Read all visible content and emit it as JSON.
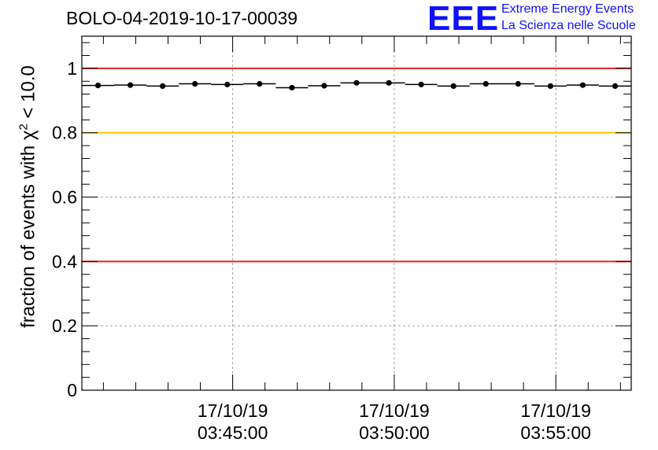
{
  "title": "BOLO-04-2019-10-17-00039",
  "logo": {
    "mark": "EEE",
    "line1": "Extreme Energy Events",
    "line2": "La Scienza nelle Scuole",
    "color": "#1010ff"
  },
  "chart_data": {
    "type": "scatter",
    "ylabel": {
      "prefix": "fraction of events with ",
      "symbol": "χ",
      "exponent": "2",
      "suffix": " < 10.0"
    },
    "ylim": [
      0,
      1.1
    ],
    "yticks": [
      {
        "value": 0,
        "label": "0"
      },
      {
        "value": 0.2,
        "label": "0.2"
      },
      {
        "value": 0.4,
        "label": "0.4"
      },
      {
        "value": 0.6,
        "label": "0.6"
      },
      {
        "value": 0.8,
        "label": "0.8"
      },
      {
        "value": 1,
        "label": "1"
      }
    ],
    "xlim": [
      "03:40:20",
      "03:57:20"
    ],
    "xticks": [
      {
        "time": "03:45:00",
        "date": "17/10/19"
      },
      {
        "time": "03:50:00",
        "date": "17/10/19"
      },
      {
        "time": "03:55:00",
        "date": "17/10/19"
      }
    ],
    "grid": true,
    "reference_lines": [
      {
        "value": 1.0,
        "color": "#e8221e"
      },
      {
        "value": 0.8,
        "color": "#ffc400"
      },
      {
        "value": 0.4,
        "color": "#e8221e"
      }
    ],
    "bin_width_seconds": 60,
    "points": [
      {
        "x": "03:40:50",
        "y": 0.947
      },
      {
        "x": "03:41:50",
        "y": 0.948
      },
      {
        "x": "03:42:50",
        "y": 0.945
      },
      {
        "x": "03:43:50",
        "y": 0.952
      },
      {
        "x": "03:44:50",
        "y": 0.95
      },
      {
        "x": "03:45:50",
        "y": 0.952
      },
      {
        "x": "03:46:50",
        "y": 0.94
      },
      {
        "x": "03:47:50",
        "y": 0.946
      },
      {
        "x": "03:48:50",
        "y": 0.955
      },
      {
        "x": "03:49:50",
        "y": 0.955
      },
      {
        "x": "03:50:50",
        "y": 0.95
      },
      {
        "x": "03:51:50",
        "y": 0.945
      },
      {
        "x": "03:52:50",
        "y": 0.952
      },
      {
        "x": "03:53:50",
        "y": 0.952
      },
      {
        "x": "03:54:50",
        "y": 0.945
      },
      {
        "x": "03:55:50",
        "y": 0.948
      },
      {
        "x": "03:56:50",
        "y": 0.945
      }
    ]
  }
}
